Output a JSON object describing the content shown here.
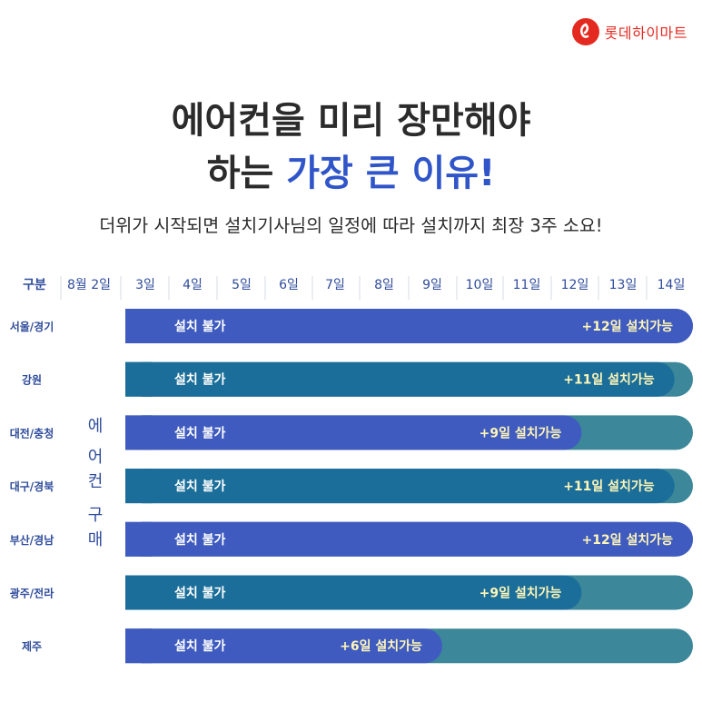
{
  "brand": {
    "name": "롯데하이마트",
    "logo_color": "#e42a20"
  },
  "headline": {
    "line1": "에어컨을 미리 장만해야",
    "line2_prefix": "하는 ",
    "line2_accent": "가장 큰 이유!"
  },
  "subheadline": "더위가 시작되면 설치기사님의 일정에 따라 설치까지 최장 3주 소요!",
  "chart_data": {
    "type": "bar",
    "orientation": "horizontal",
    "header_label": "구분",
    "categories": [
      "8월 2일",
      "3일",
      "4일",
      "5일",
      "6일",
      "7일",
      "8일",
      "9일",
      "10일",
      "11일",
      "12일",
      "13일",
      "14일"
    ],
    "side_label": [
      "에",
      "어",
      "컨",
      "구",
      "매"
    ],
    "series": [
      {
        "name": "설치 불가",
        "label": "설치 불가",
        "color_scheme": {
          "front": [
            "#3f5bbf",
            "#1a6e99"
          ],
          "back": "#3c8799"
        }
      }
    ],
    "rows": [
      {
        "region": "서울/경기",
        "days_unavailable": 12,
        "avail_text": "+12일 설치가능",
        "front_color": "#3f5bbf",
        "back_color": "#3f5bbf"
      },
      {
        "region": "강원",
        "days_unavailable": 11,
        "avail_text": "+11일 설치가능",
        "front_color": "#1a6e99",
        "back_color": "#3c8799"
      },
      {
        "region": "대전/충청",
        "days_unavailable": 9,
        "avail_text": "+9일 설치가능",
        "front_color": "#3f5bbf",
        "back_color": "#3c8799"
      },
      {
        "region": "대구/경북",
        "days_unavailable": 11,
        "avail_text": "+11일 설치가능",
        "front_color": "#1a6e99",
        "back_color": "#3c8799"
      },
      {
        "region": "부산/경남",
        "days_unavailable": 12,
        "avail_text": "+12일 설치가능",
        "front_color": "#3f5bbf",
        "back_color": "#3f5bbf"
      },
      {
        "region": "광주/전라",
        "days_unavailable": 9,
        "avail_text": "+9일 설치가능",
        "front_color": "#1a6e99",
        "back_color": "#3c8799"
      },
      {
        "region": "제주",
        "days_unavailable": 6,
        "avail_text": "+6일 설치가능",
        "front_color": "#3f5bbf",
        "back_color": "#3c8799"
      }
    ],
    "bar_label": "설치 불가",
    "xlim_days": [
      0,
      12
    ]
  }
}
